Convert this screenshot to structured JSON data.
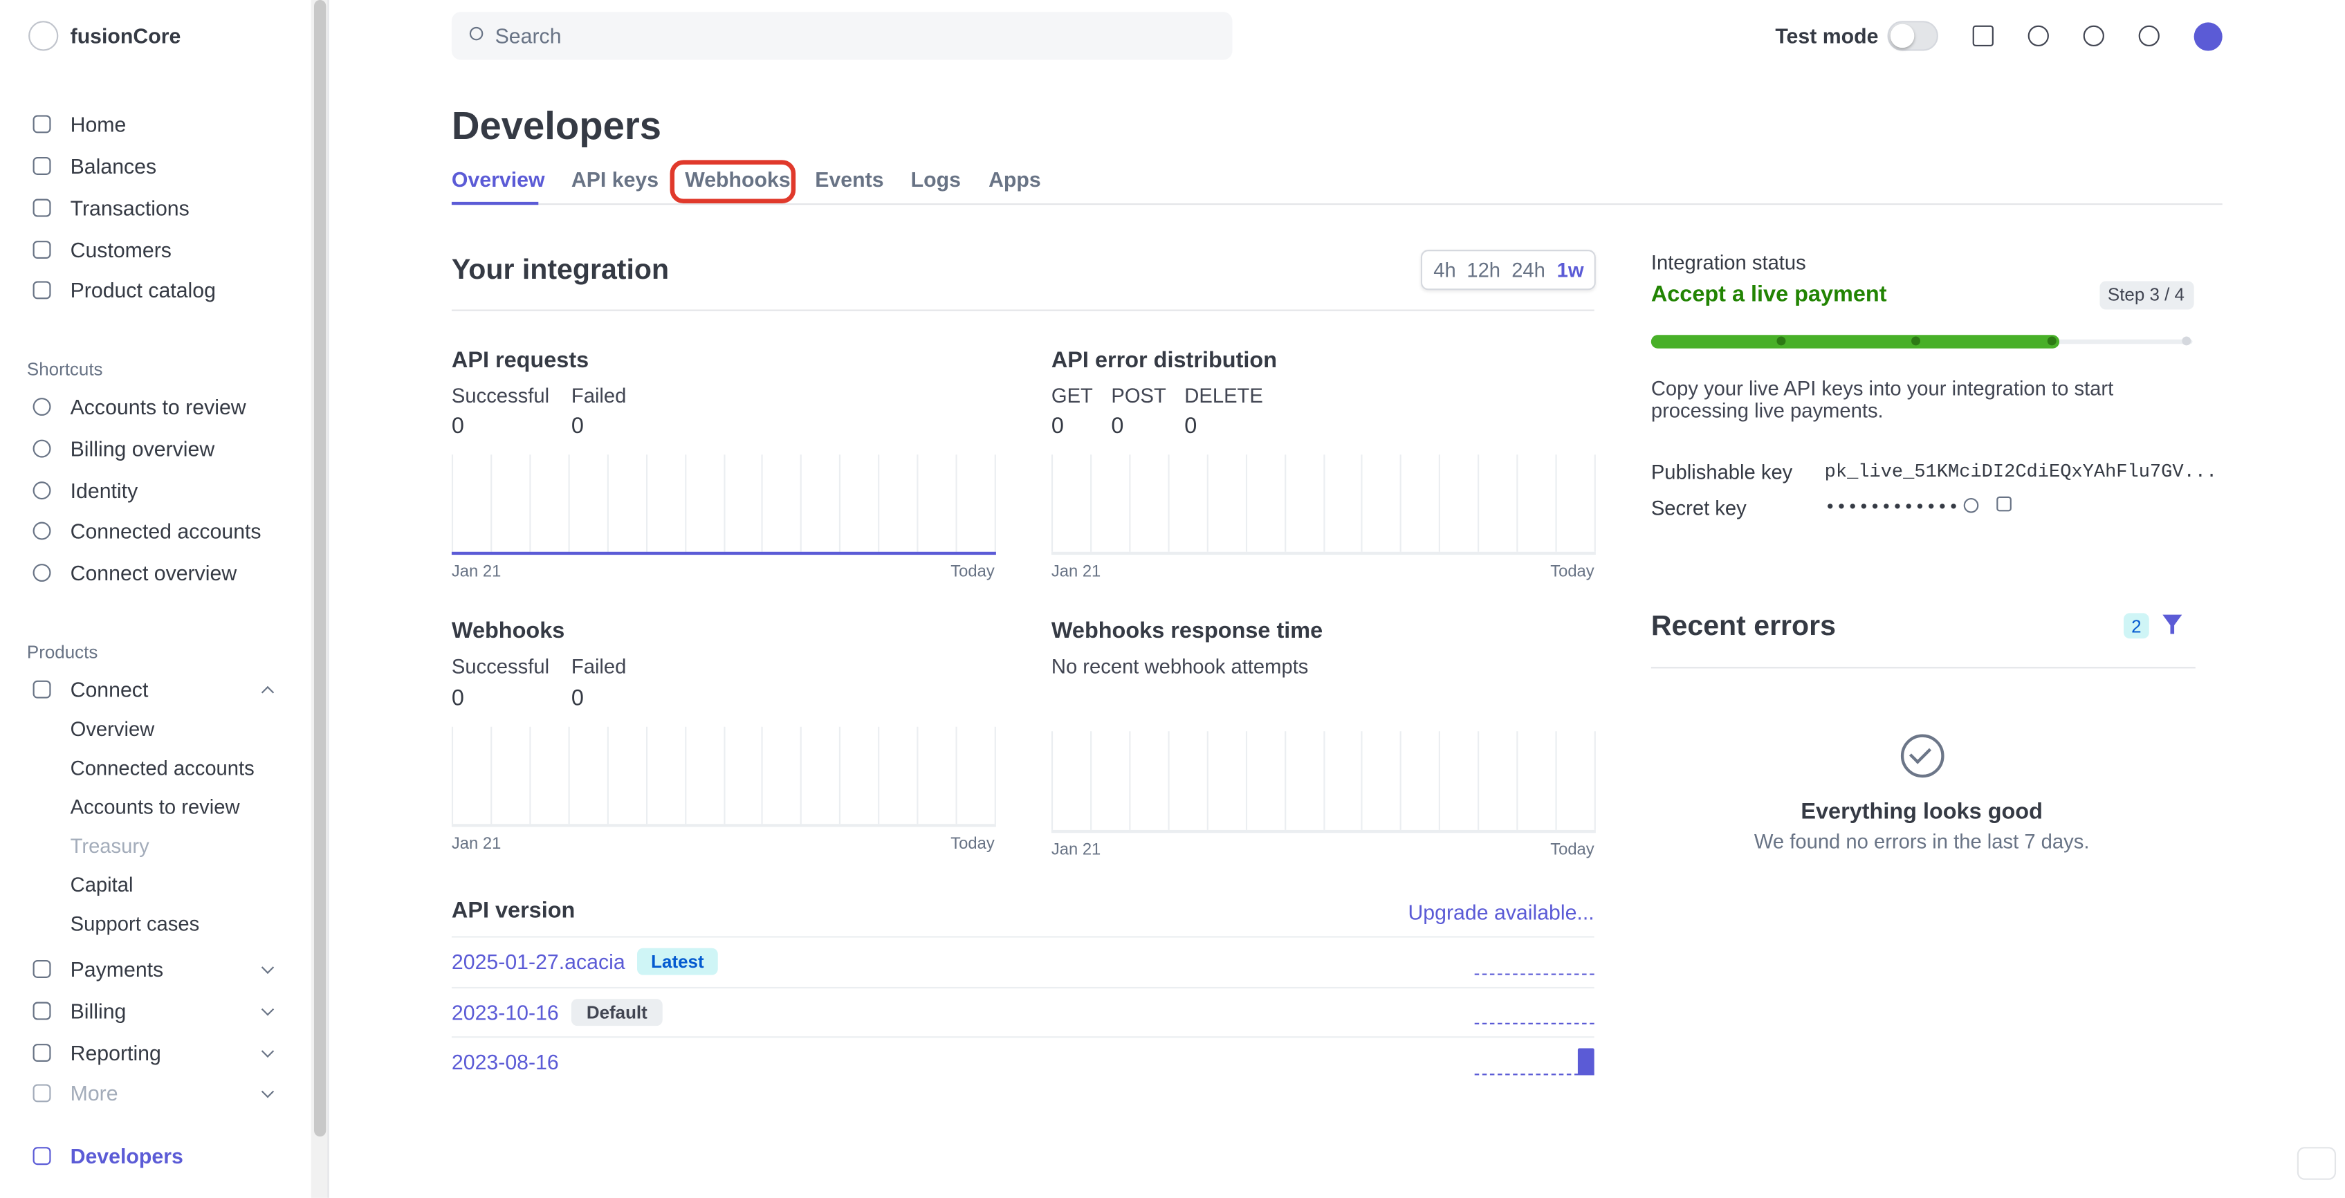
{
  "sidebar": {
    "brand": "fusionCore",
    "nav": [
      "Home",
      "Balances",
      "Transactions",
      "Customers",
      "Product catalog"
    ],
    "shortcuts_title": "Shortcuts",
    "shortcuts": [
      "Accounts to review",
      "Billing overview",
      "Identity",
      "Connected accounts",
      "Connect overview"
    ],
    "products_title": "Products",
    "connect": "Connect",
    "connect_items": [
      "Overview",
      "Connected accounts",
      "Accounts to review",
      "Treasury",
      "Capital",
      "Support cases"
    ],
    "products": [
      "Payments",
      "Billing",
      "Reporting",
      "More"
    ],
    "developers": "Developers"
  },
  "topbar": {
    "search": "Search",
    "test_mode": "Test mode"
  },
  "page": {
    "title": "Developers",
    "tabs": [
      "Overview",
      "API keys",
      "Webhooks",
      "Events",
      "Logs",
      "Apps"
    ]
  },
  "integration": {
    "title": "Your integration",
    "ranges": [
      "4h",
      "12h",
      "24h",
      "1w"
    ],
    "panels": [
      {
        "title": "API requests",
        "stats": [
          {
            "label": "Successful",
            "value": 0
          },
          {
            "label": "Failed",
            "value": 0
          }
        ],
        "x_start": "Jan 21",
        "x_end": "Today"
      },
      {
        "title": "API error distribution",
        "stats": [
          {
            "label": "GET",
            "value": 0
          },
          {
            "label": "POST",
            "value": 0
          },
          {
            "label": "DELETE",
            "value": 0
          }
        ],
        "x_start": "Jan 21",
        "x_end": "Today"
      },
      {
        "title": "Webhooks",
        "stats": [
          {
            "label": "Successful",
            "value": 0
          },
          {
            "label": "Failed",
            "value": 0
          }
        ],
        "x_start": "Jan 21",
        "x_end": "Today"
      },
      {
        "title": "Webhooks response time",
        "note": "No recent webhook attempts",
        "x_start": "Jan 21",
        "x_end": "Today"
      }
    ]
  },
  "api_version": {
    "title": "API version",
    "upgrade": "Upgrade available...",
    "rows": [
      {
        "version": "2025-01-27.acacia",
        "badge": "Latest"
      },
      {
        "version": "2023-10-16",
        "badge": "Default"
      },
      {
        "version": "2023-08-16"
      }
    ]
  },
  "status": {
    "label": "Integration status",
    "title": "Accept a live payment",
    "step": "Step 3 / 4",
    "description": [
      "Copy your live API keys into your integration to start",
      "processing live payments."
    ],
    "keys": [
      {
        "label": "Publishable key",
        "value": "pk_live_51KMciDI2CdiEQxYAhFlu7GV..."
      },
      {
        "label": "Secret key",
        "value": "••••••••••••"
      }
    ]
  },
  "errors": {
    "title": "Recent errors",
    "count": "2",
    "empty_title": "Everything looks good",
    "empty_text": "We found no errors in the last 7 days."
  }
}
